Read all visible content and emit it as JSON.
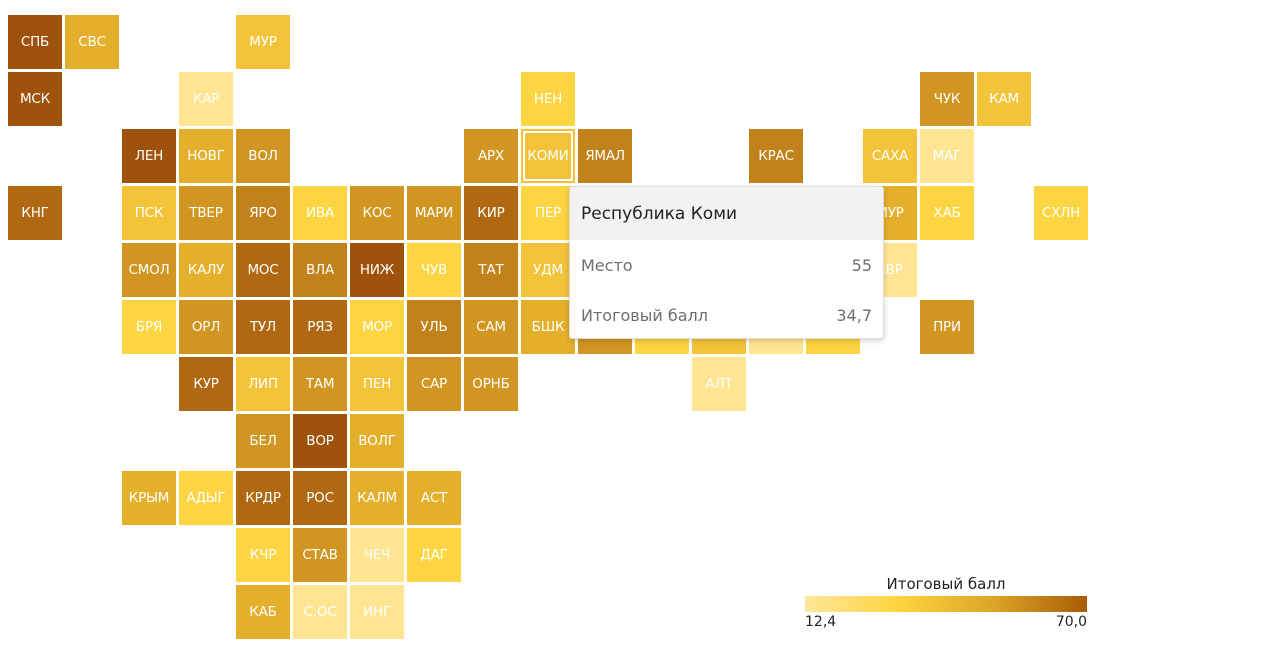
{
  "colors": {
    "c1": "#ffe591",
    "c2": "#fdd542",
    "c3": "#f3c33a",
    "c4": "#e4b02c",
    "c5": "#d19522",
    "c6": "#c2821b",
    "c7": "#b06812",
    "c8": "#9f520b"
  },
  "regions": [
    {
      "label": "СПБ",
      "row": 0,
      "col": 0,
      "fill": "c8"
    },
    {
      "label": "СВС",
      "row": 0,
      "col": 1,
      "fill": "c4"
    },
    {
      "label": "МУР",
      "row": 0,
      "col": 4,
      "fill": "c3"
    },
    {
      "label": "МСК",
      "row": 1,
      "col": 0,
      "fill": "c8"
    },
    {
      "label": "КАР",
      "row": 1,
      "col": 3,
      "fill": "c1"
    },
    {
      "label": "НЕН",
      "row": 1,
      "col": 9,
      "fill": "c2"
    },
    {
      "label": "ЧУК",
      "row": 1,
      "col": 16,
      "fill": "c5"
    },
    {
      "label": "КАМ",
      "row": 1,
      "col": 17,
      "fill": "c3"
    },
    {
      "label": "ЛЕН",
      "row": 2,
      "col": 2,
      "fill": "c8"
    },
    {
      "label": "НОВГ",
      "row": 2,
      "col": 3,
      "fill": "c4"
    },
    {
      "label": "ВОЛ",
      "row": 2,
      "col": 4,
      "fill": "c5"
    },
    {
      "label": "АРХ",
      "row": 2,
      "col": 8,
      "fill": "c5"
    },
    {
      "label": "КОМИ",
      "row": 2,
      "col": 9,
      "fill": "c3",
      "highlight": true
    },
    {
      "label": "ЯМАЛ",
      "row": 2,
      "col": 10,
      "fill": "c6"
    },
    {
      "label": "КРАС",
      "row": 2,
      "col": 13,
      "fill": "c6"
    },
    {
      "label": "САХА",
      "row": 2,
      "col": 15,
      "fill": "c3"
    },
    {
      "label": "МАГ",
      "row": 2,
      "col": 16,
      "fill": "c1"
    },
    {
      "label": "КНГ",
      "row": 3,
      "col": 0,
      "fill": "c7"
    },
    {
      "label": "ПСК",
      "row": 3,
      "col": 2,
      "fill": "c3"
    },
    {
      "label": "ТВЕР",
      "row": 3,
      "col": 3,
      "fill": "c5"
    },
    {
      "label": "ЯРО",
      "row": 3,
      "col": 4,
      "fill": "c6"
    },
    {
      "label": "ИВА",
      "row": 3,
      "col": 5,
      "fill": "c2"
    },
    {
      "label": "КОС",
      "row": 3,
      "col": 6,
      "fill": "c5"
    },
    {
      "label": "МАРИ",
      "row": 3,
      "col": 7,
      "fill": "c5"
    },
    {
      "label": "КИР",
      "row": 3,
      "col": 8,
      "fill": "c7"
    },
    {
      "label": "ПЕР",
      "row": 3,
      "col": 9,
      "fill": "c2"
    },
    {
      "label": "МУР",
      "row": 3,
      "col": 15,
      "fill": "c4"
    },
    {
      "label": "ХАБ",
      "row": 3,
      "col": 16,
      "fill": "c2"
    },
    {
      "label": "СХЛН",
      "row": 3,
      "col": 18,
      "fill": "c2"
    },
    {
      "label": "СМОЛ",
      "row": 4,
      "col": 2,
      "fill": "c5"
    },
    {
      "label": "КАЛУ",
      "row": 4,
      "col": 3,
      "fill": "c4"
    },
    {
      "label": "МОС",
      "row": 4,
      "col": 4,
      "fill": "c7"
    },
    {
      "label": "ВЛА",
      "row": 4,
      "col": 5,
      "fill": "c6"
    },
    {
      "label": "НИЖ",
      "row": 4,
      "col": 6,
      "fill": "c8"
    },
    {
      "label": "ЧУВ",
      "row": 4,
      "col": 7,
      "fill": "c2"
    },
    {
      "label": "ТАТ",
      "row": 4,
      "col": 8,
      "fill": "c6"
    },
    {
      "label": "УДМ",
      "row": 4,
      "col": 9,
      "fill": "c3"
    },
    {
      "label": "ЕВР",
      "row": 4,
      "col": 15,
      "fill": "c1"
    },
    {
      "label": "БРЯ",
      "row": 5,
      "col": 2,
      "fill": "c2"
    },
    {
      "label": "ОРЛ",
      "row": 5,
      "col": 3,
      "fill": "c5"
    },
    {
      "label": "ТУЛ",
      "row": 5,
      "col": 4,
      "fill": "c7"
    },
    {
      "label": "РЯЗ",
      "row": 5,
      "col": 5,
      "fill": "c7"
    },
    {
      "label": "МОР",
      "row": 5,
      "col": 6,
      "fill": "c2"
    },
    {
      "label": "УЛЬ",
      "row": 5,
      "col": 7,
      "fill": "c6"
    },
    {
      "label": "САМ",
      "row": 5,
      "col": 8,
      "fill": "c5"
    },
    {
      "label": "БШК",
      "row": 5,
      "col": 9,
      "fill": "c4"
    },
    {
      "label": "",
      "row": 5,
      "col": 10,
      "fill": "c5"
    },
    {
      "label": "",
      "row": 5,
      "col": 11,
      "fill": "c2"
    },
    {
      "label": "",
      "row": 5,
      "col": 12,
      "fill": "c3"
    },
    {
      "label": "",
      "row": 5,
      "col": 13,
      "fill": "c1"
    },
    {
      "label": "",
      "row": 5,
      "col": 14,
      "fill": "c2"
    },
    {
      "label": "ПРИ",
      "row": 5,
      "col": 16,
      "fill": "c5"
    },
    {
      "label": "КУР",
      "row": 6,
      "col": 3,
      "fill": "c7"
    },
    {
      "label": "ЛИП",
      "row": 6,
      "col": 4,
      "fill": "c3"
    },
    {
      "label": "ТАМ",
      "row": 6,
      "col": 5,
      "fill": "c5"
    },
    {
      "label": "ПЕН",
      "row": 6,
      "col": 6,
      "fill": "c3"
    },
    {
      "label": "САР",
      "row": 6,
      "col": 7,
      "fill": "c5"
    },
    {
      "label": "ОРНБ",
      "row": 6,
      "col": 8,
      "fill": "c5"
    },
    {
      "label": "АЛТ",
      "row": 6,
      "col": 12,
      "fill": "c1"
    },
    {
      "label": "БЕЛ",
      "row": 7,
      "col": 4,
      "fill": "c5"
    },
    {
      "label": "ВОР",
      "row": 7,
      "col": 5,
      "fill": "c8"
    },
    {
      "label": "ВОЛГ",
      "row": 7,
      "col": 6,
      "fill": "c4"
    },
    {
      "label": "КРЫМ",
      "row": 8,
      "col": 2,
      "fill": "c4"
    },
    {
      "label": "АДЫГ",
      "row": 8,
      "col": 3,
      "fill": "c2"
    },
    {
      "label": "КРДР",
      "row": 8,
      "col": 4,
      "fill": "c7"
    },
    {
      "label": "РОС",
      "row": 8,
      "col": 5,
      "fill": "c7"
    },
    {
      "label": "КАЛМ",
      "row": 8,
      "col": 6,
      "fill": "c4"
    },
    {
      "label": "АСТ",
      "row": 8,
      "col": 7,
      "fill": "c4"
    },
    {
      "label": "КЧР",
      "row": 9,
      "col": 4,
      "fill": "c2"
    },
    {
      "label": "СТАВ",
      "row": 9,
      "col": 5,
      "fill": "c5"
    },
    {
      "label": "ЧЕЧ",
      "row": 9,
      "col": 6,
      "fill": "c1"
    },
    {
      "label": "ДАГ",
      "row": 9,
      "col": 7,
      "fill": "c2"
    },
    {
      "label": "КАБ",
      "row": 10,
      "col": 4,
      "fill": "c4"
    },
    {
      "label": "С.ОС",
      "row": 10,
      "col": 5,
      "fill": "c1"
    },
    {
      "label": "ИНГ",
      "row": 10,
      "col": 6,
      "fill": "c1"
    }
  ],
  "tooltip": {
    "title": "Республика Коми",
    "rank_label": "Место",
    "rank_value": "55",
    "score_label": "Итоговый балл",
    "score_value": "34,7"
  },
  "legend": {
    "title": "Итоговый балл",
    "min": "12,4",
    "max": "70,0"
  }
}
